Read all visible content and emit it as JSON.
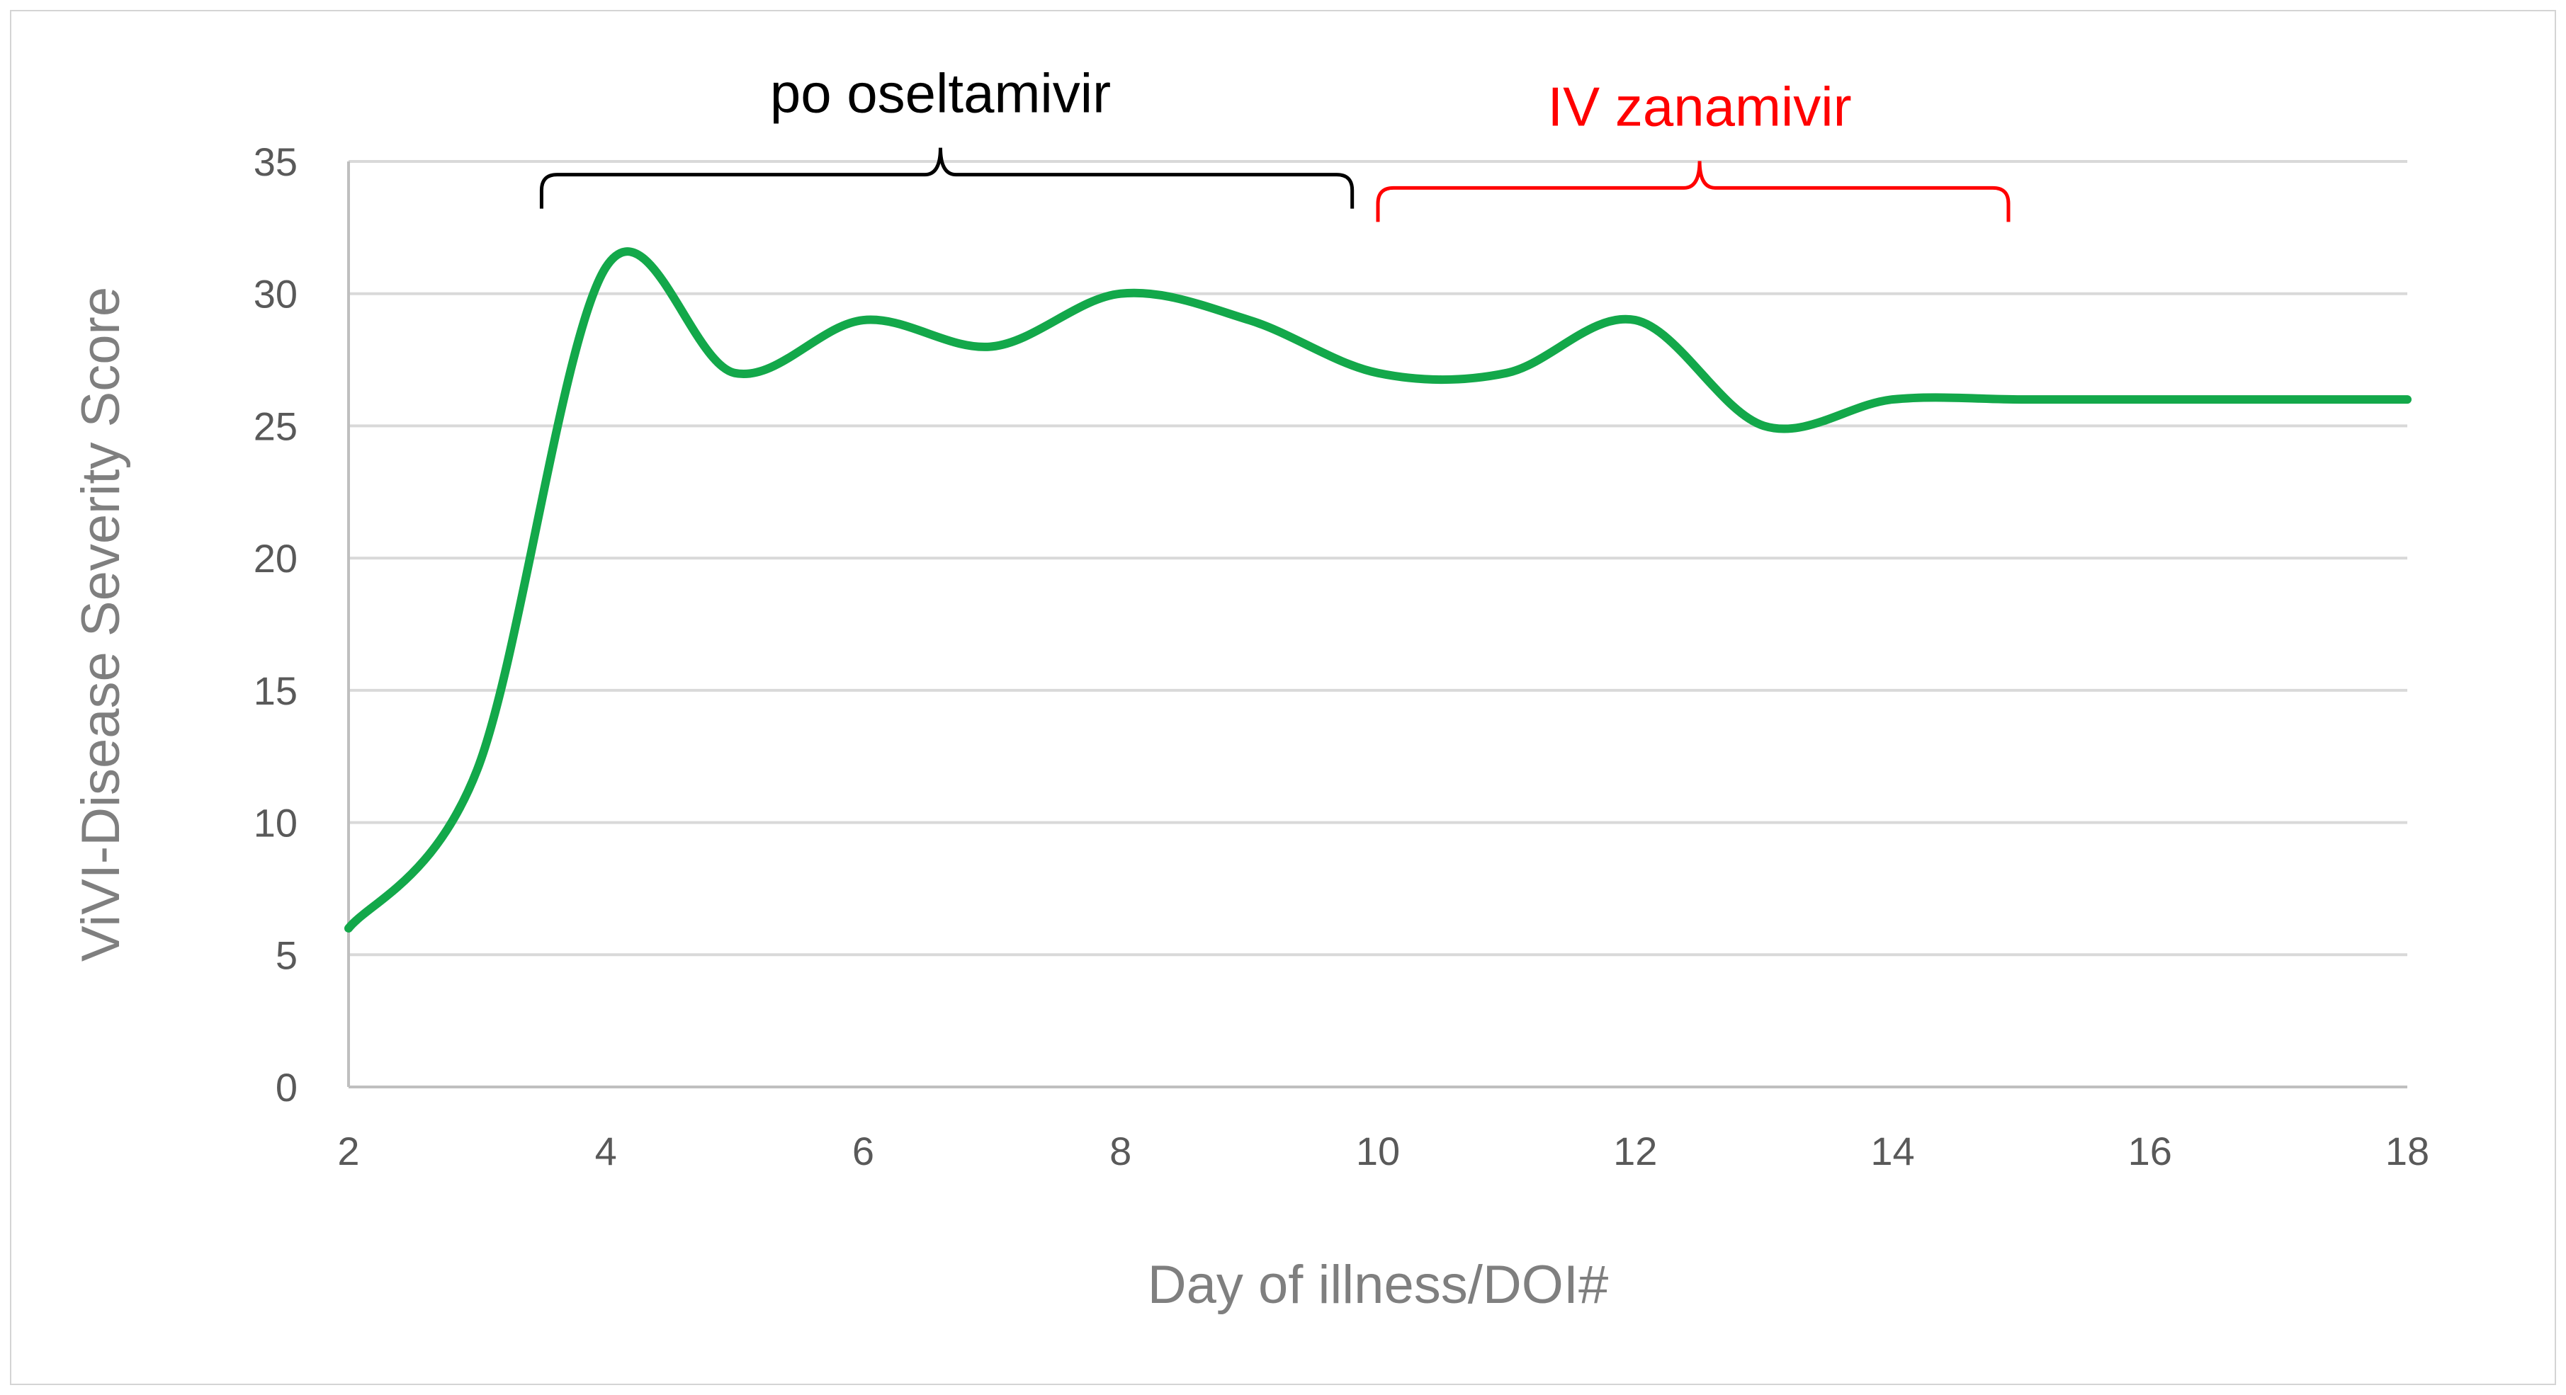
{
  "chart_data": {
    "type": "line",
    "title": "",
    "xlabel": "Day of illness/DOI#",
    "ylabel": "ViVI-Disease Severity Score",
    "xlim": [
      2,
      18
    ],
    "ylim": [
      0,
      35
    ],
    "xticks": [
      2,
      4,
      6,
      8,
      10,
      12,
      14,
      16,
      18
    ],
    "yticks": [
      0,
      5,
      10,
      15,
      20,
      25,
      30,
      35
    ],
    "grid": true,
    "series": [
      {
        "name": "ViVI-Disease Severity Score",
        "color": "#13a84a",
        "x": [
          2,
          3,
          4,
          5,
          6,
          7,
          8,
          9,
          10,
          11,
          12,
          13,
          14,
          15,
          16,
          17,
          18
        ],
        "y": [
          6,
          12,
          31,
          27,
          29,
          28,
          30,
          29,
          27,
          27,
          29,
          25,
          26,
          26,
          26,
          26,
          26
        ]
      }
    ],
    "annotations": [
      {
        "label": "po oseltamivir",
        "start": 3.5,
        "end": 9.8,
        "apex": 6.6,
        "y": 34.5,
        "color": "#000000"
      },
      {
        "label": "IV zanamivir",
        "start": 10.0,
        "end": 14.9,
        "apex": 12.5,
        "y": 34.0,
        "color": "#ff0000"
      }
    ]
  }
}
